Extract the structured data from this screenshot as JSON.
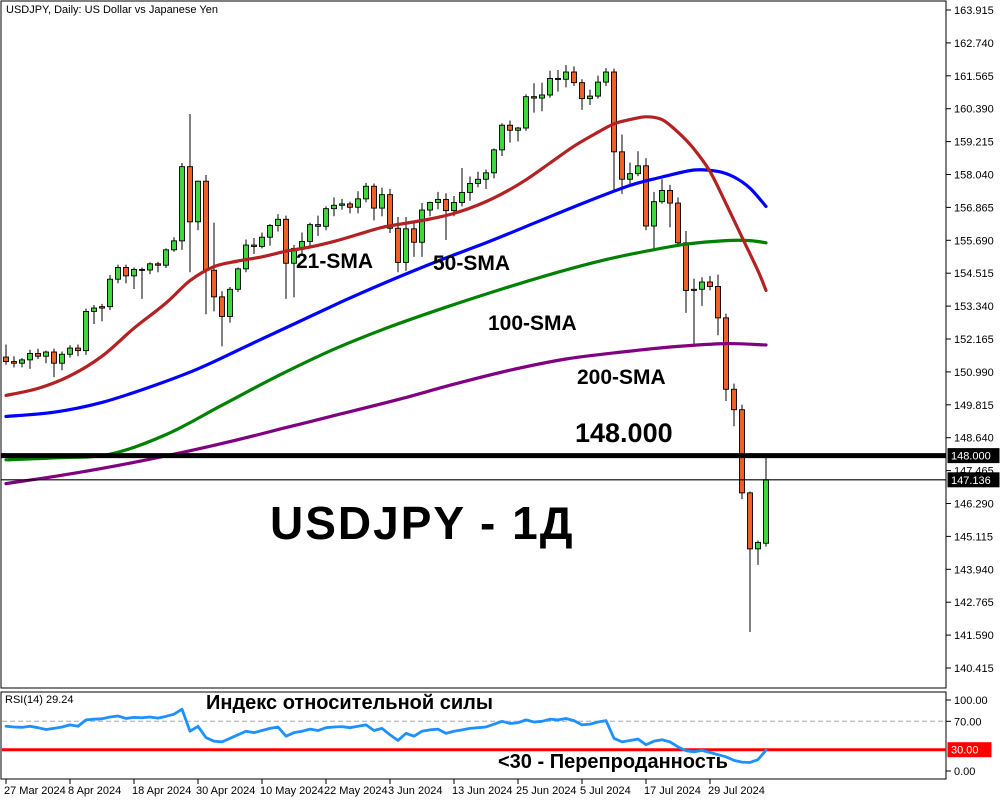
{
  "window": {
    "title": "USDJPY, Daily:  US Dollar vs Japanese Yen"
  },
  "watermark": "USDJPY - 1Д",
  "annotations": {
    "level_label": "148.000",
    "sma21": "21-SMA",
    "sma50": "50-SMA",
    "sma100": "100-SMA",
    "sma200": "200-SMA",
    "rsi_header": "RSI(14) 29.24",
    "rsi_title": "Индекс относительной силы",
    "rsi_oversold": "<30 - Перепроданность"
  },
  "colors": {
    "up_candle": "#3cd83c",
    "down_candle": "#ef5f28",
    "candle_outline": "#000000",
    "sma21": "#B22222",
    "sma50": "#0000FF",
    "sma100": "#008000",
    "sma200": "#800080",
    "rsi_line": "#1E90FF",
    "overbought_dash": "#c0c0c0",
    "oversold_line": "#FF0000",
    "level_line": "#000000",
    "badge_bg": "#000000",
    "badge_fg": "#FFFFFF",
    "rsi_badge_bg": "#FF0000",
    "axis_text": "#000000"
  },
  "price_axis": {
    "ticks": [
      163.915,
      162.74,
      161.565,
      160.39,
      159.215,
      158.04,
      156.865,
      155.69,
      154.515,
      153.34,
      152.165,
      150.99,
      149.815,
      148.64,
      147.465,
      146.29,
      145.115,
      143.94,
      142.765,
      141.59,
      140.415
    ],
    "badges": [
      {
        "label": "148.000",
        "price": 148.0
      },
      {
        "label": "147.136",
        "price": 147.136
      }
    ]
  },
  "rsi_axis": {
    "ticks": [
      100,
      70,
      0
    ],
    "badge": {
      "label": "30.00",
      "value": 30
    }
  },
  "date_axis": [
    {
      "label": "27 Mar 2024",
      "i": 0
    },
    {
      "label": "8 Apr 2024",
      "i": 8
    },
    {
      "label": "18 Apr 2024",
      "i": 16
    },
    {
      "label": "30 Apr 2024",
      "i": 24
    },
    {
      "label": "10 May 2024",
      "i": 32
    },
    {
      "label": "22 May 2024",
      "i": 40
    },
    {
      "label": "3 Jun 2024",
      "i": 48
    },
    {
      "label": "13 Jun 2024",
      "i": 56
    },
    {
      "label": "25 Jun 2024",
      "i": 64
    },
    {
      "label": "5 Jul 2024",
      "i": 72
    },
    {
      "label": "17 Jul 2024",
      "i": 80
    },
    {
      "label": "29 Jul 2024",
      "i": 88
    }
  ],
  "chart_data": {
    "type": "candlestick",
    "symbol": "USDJPY",
    "timeframe": "Daily",
    "title": "USDJPY, Daily: US Dollar vs Japanese Yen",
    "price_axis_range": [
      140.415,
      163.915
    ],
    "rsi_range": [
      0,
      100
    ],
    "levels": {
      "horizontal_line": 148.0,
      "current_price": 147.136
    },
    "ohlc_order": [
      "open",
      "high",
      "low",
      "close"
    ],
    "candles": [
      [
        151.52,
        151.97,
        151.25,
        151.36
      ],
      [
        151.36,
        151.55,
        151.15,
        151.3
      ],
      [
        151.3,
        151.48,
        151.15,
        151.42
      ],
      [
        151.42,
        151.78,
        151.1,
        151.65
      ],
      [
        151.65,
        151.82,
        151.45,
        151.55
      ],
      [
        151.55,
        151.75,
        151.3,
        151.7
      ],
      [
        151.7,
        151.82,
        150.8,
        151.3
      ],
      [
        151.3,
        151.72,
        151.05,
        151.62
      ],
      [
        151.62,
        151.94,
        151.5,
        151.84
      ],
      [
        151.84,
        151.97,
        151.55,
        151.75
      ],
      [
        151.75,
        153.25,
        151.6,
        153.15
      ],
      [
        153.15,
        153.38,
        152.7,
        153.27
      ],
      [
        153.27,
        153.42,
        152.8,
        153.32
      ],
      [
        153.32,
        154.45,
        153.2,
        154.3
      ],
      [
        154.3,
        154.82,
        154.15,
        154.72
      ],
      [
        154.72,
        154.82,
        154.15,
        154.42
      ],
      [
        154.42,
        154.72,
        153.95,
        154.65
      ],
      [
        154.65,
        154.72,
        153.6,
        154.63
      ],
      [
        154.63,
        154.9,
        154.48,
        154.85
      ],
      [
        154.85,
        154.92,
        154.55,
        154.8
      ],
      [
        154.8,
        155.4,
        154.7,
        155.35
      ],
      [
        155.35,
        155.8,
        155.28,
        155.67
      ],
      [
        155.67,
        158.45,
        155.35,
        158.32
      ],
      [
        158.32,
        160.2,
        154.55,
        156.35
      ],
      [
        156.35,
        157.82,
        156.05,
        157.8
      ],
      [
        157.8,
        158.02,
        153.05,
        154.62
      ],
      [
        154.62,
        156.32,
        153.15,
        153.67
      ],
      [
        153.67,
        153.87,
        151.9,
        152.97
      ],
      [
        152.97,
        154.02,
        152.75,
        153.94
      ],
      [
        153.94,
        154.72,
        153.85,
        154.67
      ],
      [
        154.67,
        155.72,
        154.55,
        155.52
      ],
      [
        155.52,
        155.77,
        155.2,
        155.47
      ],
      [
        155.47,
        155.97,
        155.4,
        155.8
      ],
      [
        155.8,
        156.27,
        155.5,
        156.22
      ],
      [
        156.22,
        156.62,
        156.0,
        156.44
      ],
      [
        156.44,
        156.57,
        153.6,
        154.87
      ],
      [
        154.87,
        155.52,
        153.65,
        155.4
      ],
      [
        155.4,
        155.97,
        155.2,
        155.65
      ],
      [
        155.65,
        156.32,
        155.48,
        156.25
      ],
      [
        156.25,
        156.57,
        155.85,
        156.19
      ],
      [
        156.19,
        156.9,
        156.05,
        156.82
      ],
      [
        156.82,
        157.22,
        156.55,
        156.94
      ],
      [
        156.94,
        157.17,
        156.78,
        156.99
      ],
      [
        156.99,
        157.07,
        156.65,
        156.87
      ],
      [
        156.87,
        157.44,
        156.65,
        157.17
      ],
      [
        157.17,
        157.74,
        157.05,
        157.62
      ],
      [
        157.62,
        157.72,
        156.4,
        156.84
      ],
      [
        156.84,
        157.57,
        156.55,
        157.32
      ],
      [
        157.32,
        157.52,
        155.95,
        156.12
      ],
      [
        156.12,
        156.52,
        154.55,
        154.9
      ],
      [
        154.9,
        156.52,
        154.6,
        156.1
      ],
      [
        156.1,
        156.34,
        155.1,
        155.62
      ],
      [
        155.62,
        157.02,
        155.1,
        156.77
      ],
      [
        156.77,
        157.07,
        156.55,
        157.04
      ],
      [
        157.04,
        157.42,
        156.8,
        157.15
      ],
      [
        157.15,
        157.37,
        155.7,
        156.75
      ],
      [
        156.75,
        157.27,
        156.55,
        157.04
      ],
      [
        157.04,
        158.27,
        156.9,
        157.4
      ],
      [
        157.4,
        157.97,
        157.1,
        157.72
      ],
      [
        157.72,
        158.14,
        157.58,
        157.87
      ],
      [
        157.87,
        158.22,
        157.52,
        158.1
      ],
      [
        158.1,
        158.97,
        157.9,
        158.92
      ],
      [
        158.92,
        159.87,
        158.7,
        159.8
      ],
      [
        159.8,
        159.97,
        159.18,
        159.62
      ],
      [
        159.62,
        159.74,
        159.22,
        159.7
      ],
      [
        159.7,
        160.9,
        159.6,
        160.82
      ],
      [
        160.82,
        161.3,
        160.25,
        160.77
      ],
      [
        160.77,
        161.32,
        160.3,
        160.88
      ],
      [
        160.88,
        161.75,
        160.78,
        161.47
      ],
      [
        161.47,
        161.77,
        161.0,
        161.44
      ],
      [
        161.44,
        161.95,
        161.15,
        161.7
      ],
      [
        161.7,
        161.9,
        161.2,
        161.32
      ],
      [
        161.32,
        161.44,
        160.35,
        160.75
      ],
      [
        160.75,
        161.07,
        160.52,
        160.84
      ],
      [
        160.84,
        161.57,
        160.75,
        161.34
      ],
      [
        161.34,
        161.84,
        161.2,
        161.7
      ],
      [
        161.7,
        161.82,
        157.4,
        158.85
      ],
      [
        158.85,
        159.47,
        157.35,
        157.87
      ],
      [
        157.87,
        158.47,
        157.6,
        158.07
      ],
      [
        158.07,
        158.87,
        157.98,
        158.35
      ],
      [
        158.35,
        158.62,
        156.05,
        156.2
      ],
      [
        156.2,
        157.42,
        155.35,
        157.07
      ],
      [
        157.07,
        157.87,
        157.0,
        157.47
      ],
      [
        157.47,
        157.67,
        156.15,
        157.02
      ],
      [
        157.02,
        157.22,
        155.5,
        155.6
      ],
      [
        155.6,
        156.02,
        153.1,
        153.9
      ],
      [
        153.9,
        154.32,
        151.95,
        153.94
      ],
      [
        153.94,
        154.37,
        153.35,
        154.2
      ],
      [
        154.2,
        154.42,
        153.9,
        154.04
      ],
      [
        154.04,
        154.47,
        152.3,
        152.92
      ],
      [
        152.92,
        153.07,
        149.95,
        150.37
      ],
      [
        150.37,
        150.57,
        149.05,
        149.64
      ],
      [
        149.64,
        149.82,
        146.45,
        146.67
      ],
      [
        146.67,
        146.72,
        141.7,
        144.67
      ],
      [
        144.67,
        144.97,
        144.1,
        144.9
      ],
      [
        144.87,
        147.95,
        144.75,
        147.136
      ]
    ],
    "overlays": [
      {
        "name": "21-SMA",
        "color": "#B22222",
        "points": [
          [
            0,
            150.15
          ],
          [
            4,
            150.4
          ],
          [
            8,
            150.85
          ],
          [
            12,
            151.55
          ],
          [
            16,
            152.55
          ],
          [
            20,
            153.45
          ],
          [
            23,
            154.25
          ],
          [
            26,
            154.75
          ],
          [
            29,
            154.95
          ],
          [
            32,
            155.1
          ],
          [
            35,
            155.3
          ],
          [
            38,
            155.45
          ],
          [
            41,
            155.65
          ],
          [
            44,
            155.9
          ],
          [
            47,
            156.15
          ],
          [
            50,
            156.3
          ],
          [
            53,
            156.45
          ],
          [
            56,
            156.65
          ],
          [
            59,
            156.95
          ],
          [
            62,
            157.35
          ],
          [
            65,
            157.85
          ],
          [
            68,
            158.45
          ],
          [
            71,
            159.05
          ],
          [
            74,
            159.55
          ],
          [
            76,
            159.85
          ],
          [
            78,
            160.0
          ],
          [
            80,
            160.1
          ],
          [
            82,
            160.0
          ],
          [
            84,
            159.55
          ],
          [
            86,
            158.95
          ],
          [
            88,
            158.15
          ],
          [
            90,
            157.0
          ],
          [
            92,
            155.8
          ],
          [
            94,
            154.6
          ],
          [
            95,
            153.9
          ]
        ]
      },
      {
        "name": "50-SMA",
        "color": "#0000FF",
        "points": [
          [
            0,
            149.4
          ],
          [
            6,
            149.55
          ],
          [
            12,
            149.9
          ],
          [
            18,
            150.45
          ],
          [
            24,
            151.1
          ],
          [
            30,
            151.9
          ],
          [
            36,
            152.7
          ],
          [
            42,
            153.5
          ],
          [
            48,
            154.25
          ],
          [
            54,
            154.95
          ],
          [
            60,
            155.6
          ],
          [
            66,
            156.3
          ],
          [
            72,
            157.0
          ],
          [
            78,
            157.65
          ],
          [
            82,
            157.95
          ],
          [
            86,
            158.2
          ],
          [
            89,
            158.15
          ],
          [
            91,
            157.95
          ],
          [
            93,
            157.55
          ],
          [
            95,
            156.9
          ]
        ]
      },
      {
        "name": "100-SMA",
        "color": "#008000",
        "points": [
          [
            0,
            147.85
          ],
          [
            6,
            147.92
          ],
          [
            13,
            148.05
          ],
          [
            20,
            148.75
          ],
          [
            27,
            149.8
          ],
          [
            34,
            150.85
          ],
          [
            41,
            151.8
          ],
          [
            48,
            152.6
          ],
          [
            55,
            153.3
          ],
          [
            62,
            153.95
          ],
          [
            69,
            154.55
          ],
          [
            75,
            155.0
          ],
          [
            80,
            155.3
          ],
          [
            85,
            155.55
          ],
          [
            90,
            155.68
          ],
          [
            93,
            155.68
          ],
          [
            95,
            155.6
          ]
        ]
      },
      {
        "name": "200-SMA",
        "color": "#800080",
        "points": [
          [
            0,
            147.0
          ],
          [
            7,
            147.3
          ],
          [
            14,
            147.65
          ],
          [
            21,
            148.05
          ],
          [
            28,
            148.5
          ],
          [
            35,
            149.0
          ],
          [
            42,
            149.5
          ],
          [
            49,
            150.0
          ],
          [
            56,
            150.55
          ],
          [
            63,
            151.05
          ],
          [
            70,
            151.45
          ],
          [
            77,
            151.7
          ],
          [
            84,
            151.9
          ],
          [
            90,
            152.0
          ],
          [
            95,
            151.95
          ]
        ]
      }
    ],
    "indicator": {
      "name": "RSI",
      "period": 14,
      "current": 29.24,
      "overbought": 70,
      "oversold": 30,
      "values": [
        63,
        62,
        61.5,
        63,
        61,
        58.5,
        60,
        62,
        65,
        63,
        72,
        73,
        73.5,
        76,
        77.5,
        74,
        75.5,
        75,
        76,
        74.5,
        77,
        80,
        87,
        56,
        63,
        47,
        42,
        41,
        46,
        51,
        56,
        54,
        57,
        60,
        62,
        49,
        54,
        56,
        59,
        57,
        61,
        62,
        62.5,
        61,
        63,
        65,
        57,
        60,
        51,
        43,
        53,
        49,
        56,
        58,
        59,
        53,
        56,
        58,
        60,
        61,
        62,
        66,
        70,
        67,
        68,
        72,
        69,
        70,
        73,
        72,
        74,
        71,
        65,
        66,
        69,
        71,
        46,
        41,
        43,
        45,
        37,
        42,
        44,
        41,
        34,
        28.5,
        27,
        29,
        26,
        23,
        20,
        15,
        12.5,
        12,
        16,
        29.24
      ]
    }
  }
}
